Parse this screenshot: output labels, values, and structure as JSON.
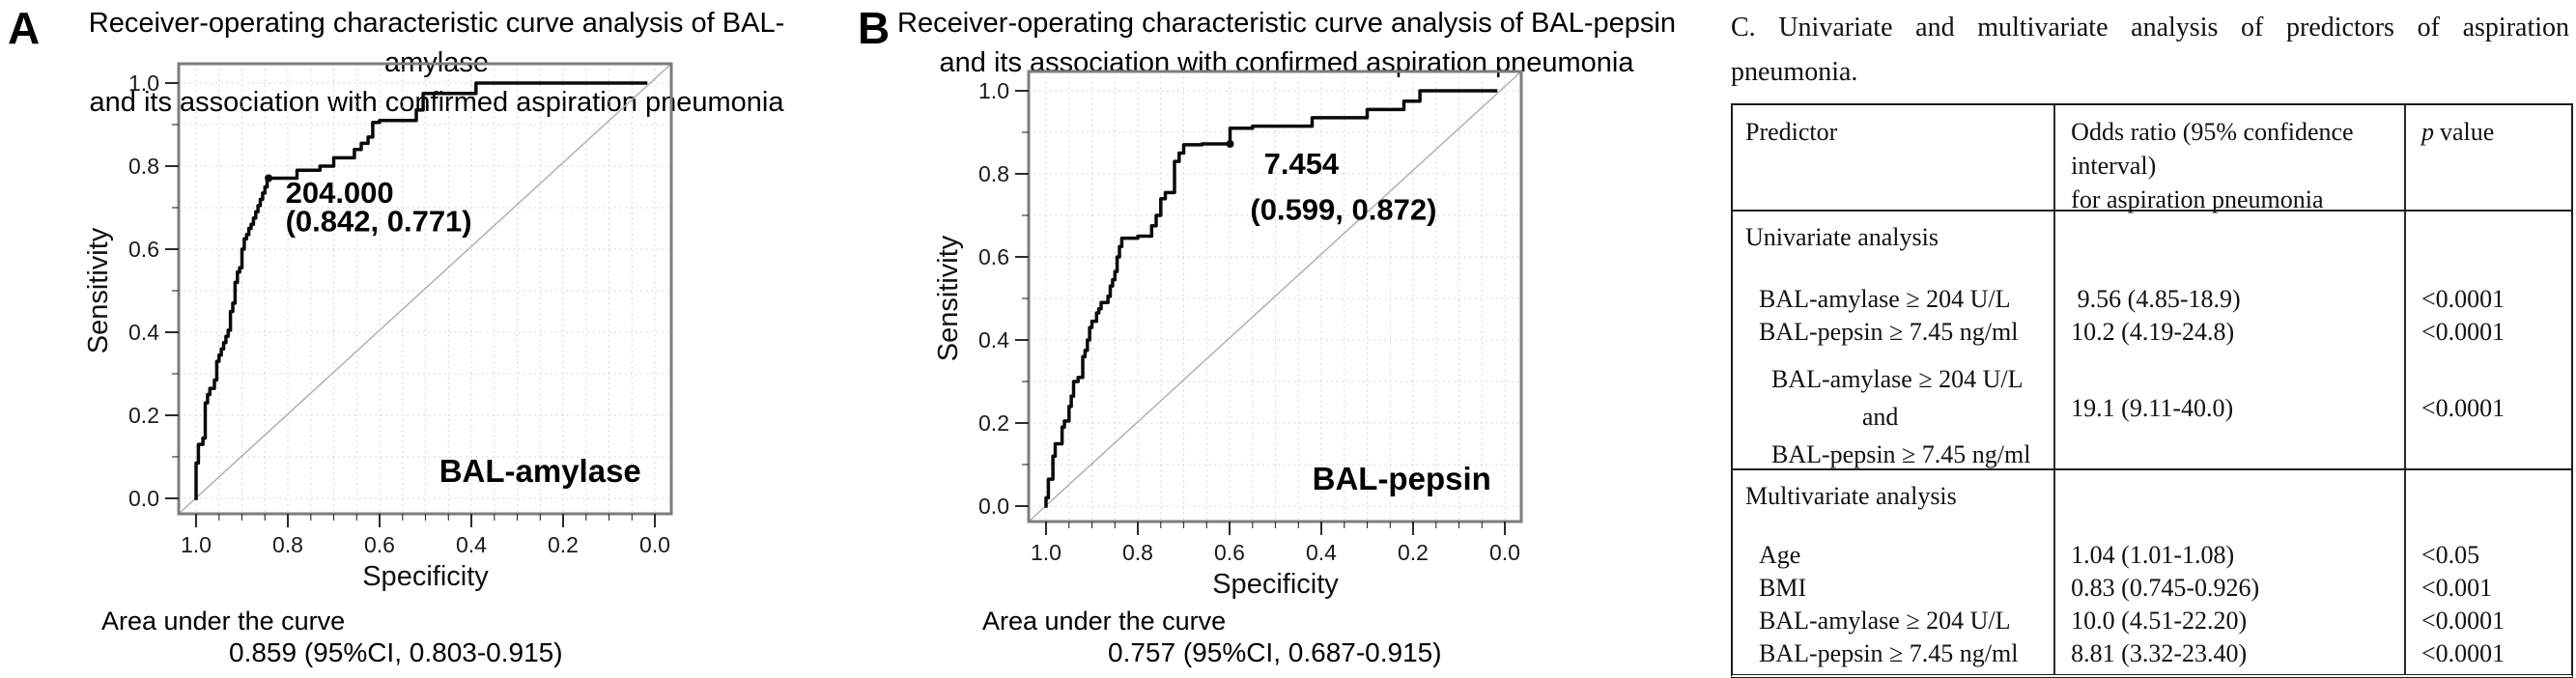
{
  "panels": {
    "a": {
      "label": "A",
      "title_line1": "Receiver-operating characteristic curve analysis of BAL-amylase",
      "title_line2": "and its association with confirmed  aspiration pneumonia",
      "auc_label": "Area under the curve",
      "auc_value": "0.859 (95%CI, 0.803-0.915)"
    },
    "b": {
      "label": "B",
      "title_line1": "Receiver-operating characteristic curve analysis of BAL-pepsin",
      "title_line2": "and its association with confirmed  aspiration pneumonia",
      "auc_label": "Area under the curve",
      "auc_value": "0.757 (95%CI, 0.687-0.915)"
    }
  },
  "table": {
    "caption_line1": "C. Univariate and multivariate analysis of predictors of aspiration",
    "caption_line2": "pneumonia.",
    "col1_header": "Predictor",
    "col2_header_lines": [
      "Odds ratio (95% confidence",
      "interval)",
      "for aspiration pneumonia"
    ],
    "p_header": {
      "italic": "p",
      "rest": "value"
    },
    "sections": [
      {
        "name": "Univariate analysis",
        "rows": [
          {
            "predictor": [
              "BAL-amylase ≥ 204 U/L"
            ],
            "or": " 9.56 (4.85-18.9)",
            "p": "<0.0001"
          },
          {
            "predictor": [
              "BAL-pepsin ≥ 7.45 ng/ml"
            ],
            "or": "10.2 (4.19-24.8)",
            "p": "<0.0001"
          },
          {
            "predictor": [
              "BAL-amylase ≥ 204 U/L",
              "and",
              "BAL-pepsin ≥ 7.45 ng/ml"
            ],
            "or": "19.1 (9.11-40.0)",
            "p": "<0.0001"
          }
        ]
      },
      {
        "name": "Multivariate analysis",
        "rows": [
          {
            "predictor": [
              "Age"
            ],
            "or": "1.04 (1.01-1.08)",
            "p": "<0.05"
          },
          {
            "predictor": [
              "BMI"
            ],
            "or": "0.83 (0.745-0.926)",
            "p": "<0.001"
          },
          {
            "predictor": [
              "BAL-amylase ≥ 204 U/L"
            ],
            "or": "10.0 (4.51-22.20)",
            "p": "<0.0001"
          },
          {
            "predictor": [
              "BAL-pepsin ≥ 7.45 ng/ml"
            ],
            "or": "8.81 (3.32-23.40)",
            "p": "<0.0001"
          }
        ]
      }
    ]
  },
  "chart_data": [
    {
      "type": "line",
      "subtype": "roc-step-curve",
      "title": "Receiver-operating characteristic curve analysis of BAL-amylase and its association with confirmed aspiration pneumonia",
      "xlabel": "Specificity",
      "ylabel": "Sensitivity",
      "x_axis": {
        "ticks": [
          "1.0",
          "0.8",
          "0.6",
          "0.4",
          "0.2",
          "0.0"
        ],
        "reversed": true,
        "range": [
          1.0,
          0.0
        ]
      },
      "y_axis": {
        "ticks": [
          "0.0",
          "0.2",
          "0.4",
          "0.6",
          "0.8",
          "1.0"
        ],
        "range": [
          0.0,
          1.0
        ]
      },
      "grid": true,
      "auc": 0.859,
      "auc_ci": "0.803-0.915",
      "cutoff": {
        "threshold": 204.0,
        "specificity": 0.842,
        "sensitivity": 0.771
      },
      "annotation": {
        "lines": [
          "204.000",
          "(0.842, 0.771)"
        ],
        "x_spec": [
          0.805,
          0.805
        ],
        "y_sens": [
          0.712,
          0.643
        ]
      },
      "series": [
        {
          "name": "BAL-amylase",
          "points": [
            [
              1,
              0
            ],
            [
              1,
              0.085
            ],
            [
              0.995,
              0.085
            ],
            [
              0.995,
              0.13
            ],
            [
              0.985,
              0.13
            ],
            [
              0.985,
              0.145
            ],
            [
              0.98,
              0.145
            ],
            [
              0.98,
              0.23
            ],
            [
              0.975,
              0.23
            ],
            [
              0.975,
              0.25
            ],
            [
              0.97,
              0.25
            ],
            [
              0.97,
              0.265
            ],
            [
              0.96,
              0.265
            ],
            [
              0.96,
              0.285
            ],
            [
              0.955,
              0.285
            ],
            [
              0.955,
              0.33
            ],
            [
              0.95,
              0.33
            ],
            [
              0.95,
              0.345
            ],
            [
              0.945,
              0.345
            ],
            [
              0.945,
              0.36
            ],
            [
              0.94,
              0.36
            ],
            [
              0.94,
              0.375
            ],
            [
              0.935,
              0.375
            ],
            [
              0.935,
              0.39
            ],
            [
              0.93,
              0.39
            ],
            [
              0.93,
              0.405
            ],
            [
              0.925,
              0.405
            ],
            [
              0.925,
              0.45
            ],
            [
              0.92,
              0.45
            ],
            [
              0.92,
              0.47
            ],
            [
              0.915,
              0.47
            ],
            [
              0.915,
              0.52
            ],
            [
              0.91,
              0.52
            ],
            [
              0.91,
              0.545
            ],
            [
              0.905,
              0.545
            ],
            [
              0.905,
              0.555
            ],
            [
              0.9,
              0.555
            ],
            [
              0.9,
              0.6
            ],
            [
              0.895,
              0.6
            ],
            [
              0.895,
              0.625
            ],
            [
              0.89,
              0.625
            ],
            [
              0.89,
              0.635
            ],
            [
              0.885,
              0.635
            ],
            [
              0.885,
              0.65
            ],
            [
              0.88,
              0.65
            ],
            [
              0.88,
              0.66
            ],
            [
              0.875,
              0.66
            ],
            [
              0.875,
              0.675
            ],
            [
              0.87,
              0.675
            ],
            [
              0.87,
              0.69
            ],
            [
              0.865,
              0.69
            ],
            [
              0.865,
              0.705
            ],
            [
              0.86,
              0.705
            ],
            [
              0.86,
              0.72
            ],
            [
              0.855,
              0.72
            ],
            [
              0.855,
              0.735
            ],
            [
              0.85,
              0.735
            ],
            [
              0.85,
              0.75
            ],
            [
              0.845,
              0.75
            ],
            [
              0.845,
              0.771
            ],
            [
              0.842,
              0.771
            ],
            [
              0.78,
              0.771
            ],
            [
              0.78,
              0.79
            ],
            [
              0.73,
              0.79
            ],
            [
              0.73,
              0.8
            ],
            [
              0.7,
              0.8
            ],
            [
              0.7,
              0.82
            ],
            [
              0.655,
              0.82
            ],
            [
              0.655,
              0.84
            ],
            [
              0.64,
              0.84
            ],
            [
              0.64,
              0.855
            ],
            [
              0.625,
              0.855
            ],
            [
              0.625,
              0.87
            ],
            [
              0.615,
              0.87
            ],
            [
              0.615,
              0.905
            ],
            [
              0.6,
              0.905
            ],
            [
              0.6,
              0.91
            ],
            [
              0.52,
              0.91
            ],
            [
              0.52,
              0.935
            ],
            [
              0.505,
              0.935
            ],
            [
              0.505,
              0.975
            ],
            [
              0.39,
              0.975
            ],
            [
              0.39,
              1
            ],
            [
              0.02,
              1
            ]
          ]
        },
        {
          "name": "reference diagonal",
          "points": [
            [
              1,
              0
            ],
            [
              0,
              1
            ]
          ]
        }
      ]
    },
    {
      "type": "line",
      "subtype": "roc-step-curve",
      "title": "Receiver-operating characteristic curve analysis of BAL-pepsin and its association with confirmed aspiration pneumonia",
      "xlabel": "Specificity",
      "ylabel": "Sensitivity",
      "x_axis": {
        "ticks": [
          "1.0",
          "0.8",
          "0.6",
          "0.4",
          "0.2",
          "0.0"
        ],
        "reversed": true,
        "range": [
          1.0,
          0.0
        ]
      },
      "y_axis": {
        "ticks": [
          "0.0",
          "0.2",
          "0.4",
          "0.6",
          "0.8",
          "1.0"
        ],
        "range": [
          0.0,
          1.0
        ]
      },
      "grid": true,
      "auc": 0.757,
      "auc_ci": "0.687-0.915",
      "cutoff": {
        "threshold": 7.454,
        "specificity": 0.599,
        "sensitivity": 0.872
      },
      "annotation": {
        "lines": [
          "7.454",
          "(0.599, 0.872)"
        ],
        "x_spec": [
          0.525,
          0.555
        ],
        "y_sens": [
          0.8,
          0.69
        ]
      },
      "series": [
        {
          "name": "BAL-pepsin",
          "points": [
            [
              1,
              0
            ],
            [
              1,
              0.02
            ],
            [
              0.995,
              0.02
            ],
            [
              0.995,
              0.065
            ],
            [
              0.985,
              0.065
            ],
            [
              0.985,
              0.12
            ],
            [
              0.98,
              0.12
            ],
            [
              0.98,
              0.15
            ],
            [
              0.965,
              0.15
            ],
            [
              0.965,
              0.19
            ],
            [
              0.96,
              0.19
            ],
            [
              0.96,
              0.205
            ],
            [
              0.95,
              0.205
            ],
            [
              0.95,
              0.24
            ],
            [
              0.945,
              0.24
            ],
            [
              0.945,
              0.265
            ],
            [
              0.94,
              0.265
            ],
            [
              0.94,
              0.3
            ],
            [
              0.93,
              0.3
            ],
            [
              0.93,
              0.31
            ],
            [
              0.92,
              0.31
            ],
            [
              0.92,
              0.36
            ],
            [
              0.915,
              0.36
            ],
            [
              0.915,
              0.375
            ],
            [
              0.91,
              0.375
            ],
            [
              0.91,
              0.4
            ],
            [
              0.905,
              0.4
            ],
            [
              0.905,
              0.43
            ],
            [
              0.9,
              0.43
            ],
            [
              0.9,
              0.445
            ],
            [
              0.89,
              0.445
            ],
            [
              0.89,
              0.465
            ],
            [
              0.885,
              0.465
            ],
            [
              0.885,
              0.475
            ],
            [
              0.88,
              0.475
            ],
            [
              0.88,
              0.49
            ],
            [
              0.865,
              0.49
            ],
            [
              0.865,
              0.505
            ],
            [
              0.86,
              0.505
            ],
            [
              0.86,
              0.53
            ],
            [
              0.855,
              0.53
            ],
            [
              0.855,
              0.545
            ],
            [
              0.85,
              0.545
            ],
            [
              0.85,
              0.565
            ],
            [
              0.845,
              0.565
            ],
            [
              0.845,
              0.6
            ],
            [
              0.84,
              0.6
            ],
            [
              0.84,
              0.625
            ],
            [
              0.835,
              0.625
            ],
            [
              0.835,
              0.645
            ],
            [
              0.8,
              0.645
            ],
            [
              0.8,
              0.65
            ],
            [
              0.77,
              0.65
            ],
            [
              0.77,
              0.675
            ],
            [
              0.76,
              0.675
            ],
            [
              0.76,
              0.7
            ],
            [
              0.75,
              0.7
            ],
            [
              0.75,
              0.74
            ],
            [
              0.74,
              0.74
            ],
            [
              0.74,
              0.755
            ],
            [
              0.72,
              0.755
            ],
            [
              0.72,
              0.83
            ],
            [
              0.71,
              0.83
            ],
            [
              0.71,
              0.85
            ],
            [
              0.7,
              0.85
            ],
            [
              0.7,
              0.87
            ],
            [
              0.66,
              0.87
            ],
            [
              0.66,
              0.872
            ],
            [
              0.599,
              0.872
            ],
            [
              0.599,
              0.91
            ],
            [
              0.55,
              0.91
            ],
            [
              0.55,
              0.915
            ],
            [
              0.42,
              0.915
            ],
            [
              0.42,
              0.935
            ],
            [
              0.3,
              0.935
            ],
            [
              0.3,
              0.955
            ],
            [
              0.22,
              0.955
            ],
            [
              0.22,
              0.975
            ],
            [
              0.185,
              0.975
            ],
            [
              0.185,
              1
            ],
            [
              0.02,
              1
            ]
          ]
        },
        {
          "name": "reference diagonal",
          "points": [
            [
              1,
              0
            ],
            [
              0,
              1
            ]
          ]
        }
      ]
    }
  ]
}
